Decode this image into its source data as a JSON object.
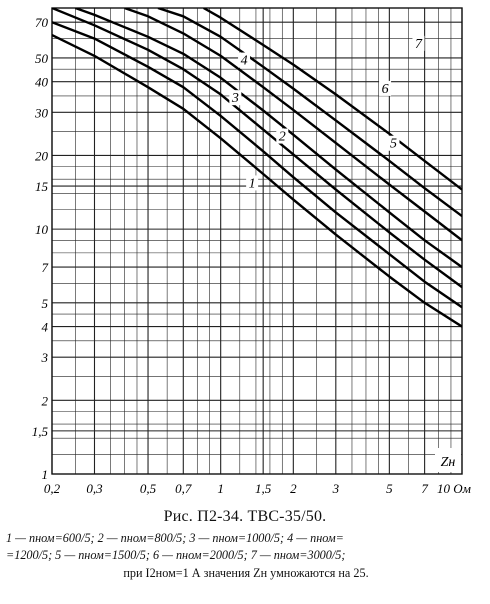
{
  "chart_data": {
    "type": "line",
    "xscale": "log",
    "yscale": "log",
    "xlim": [
      0.2,
      10
    ],
    "ylim": [
      1,
      80
    ],
    "grid": true,
    "x_ticks": [
      "0,2",
      "0,3",
      "0,5",
      "0,7",
      "1",
      "1,5",
      "2",
      "3",
      "5",
      "7",
      "10 Ом"
    ],
    "y_ticks": [
      "1",
      "1,5",
      "2",
      "3",
      "4",
      "5",
      "7",
      "10",
      "15",
      "20",
      "30",
      "40",
      "50",
      "70"
    ],
    "axis_label": "Zн",
    "series": [
      {
        "name": "1",
        "x": [
          0.2,
          0.3,
          0.5,
          0.7,
          1,
          1.5,
          2,
          3,
          5,
          7,
          10
        ],
        "y": [
          62,
          51,
          38,
          31,
          23.5,
          16.8,
          13.2,
          9.5,
          6.4,
          5,
          4
        ]
      },
      {
        "name": "2",
        "x": [
          0.2,
          0.3,
          0.5,
          0.7,
          1,
          1.5,
          2,
          3,
          5,
          7,
          10
        ],
        "y": [
          70,
          60,
          46,
          38,
          29,
          20.8,
          16.3,
          11.7,
          7.9,
          6.1,
          4.8
        ]
      },
      {
        "name": "3",
        "x": [
          0.2,
          0.3,
          0.5,
          0.7,
          1,
          1.5,
          2,
          3,
          5,
          7,
          10
        ],
        "y": [
          80,
          68,
          54,
          45,
          35.5,
          25.5,
          20.2,
          14.5,
          9.7,
          7.5,
          5.8
        ]
      },
      {
        "name": "4",
        "x": [
          0.25,
          0.3,
          0.5,
          0.7,
          1,
          1.5,
          2,
          3,
          5,
          7,
          10
        ],
        "y": [
          80,
          75,
          61,
          52,
          41.5,
          30.5,
          24.3,
          17.5,
          11.7,
          9,
          7
        ]
      },
      {
        "name": "5",
        "x": [
          0.4,
          0.5,
          0.7,
          1,
          1.5,
          2,
          3,
          5,
          7,
          10
        ],
        "y": [
          80,
          74,
          63,
          51,
          38,
          30.7,
          22.5,
          15.2,
          11.8,
          9
        ]
      },
      {
        "name": "6",
        "x": [
          0.55,
          0.7,
          1,
          1.5,
          2,
          3,
          5,
          7,
          10
        ],
        "y": [
          80,
          74,
          61,
          46,
          37.5,
          27.8,
          19,
          14.7,
          11.3
        ]
      },
      {
        "name": "7",
        "x": [
          0.85,
          1,
          1.5,
          2,
          3,
          5,
          7,
          10
        ],
        "y": [
          80,
          73,
          56.5,
          47,
          35.5,
          24.5,
          19,
          14.5
        ]
      }
    ]
  },
  "caption": "Рис. П2-34. ТВС-35/50.",
  "legend_lines": [
    "1 — nном=600/5;  2 — nном=800/5;  3 — nном=1000/5;  4 — nном=",
    "=1200/5;  5 — nном=1500/5;  6 — nном=2000/5;  7 — nном=3000/5;"
  ],
  "note": "при I2ном=1 А значения Zн умножаются на 25."
}
